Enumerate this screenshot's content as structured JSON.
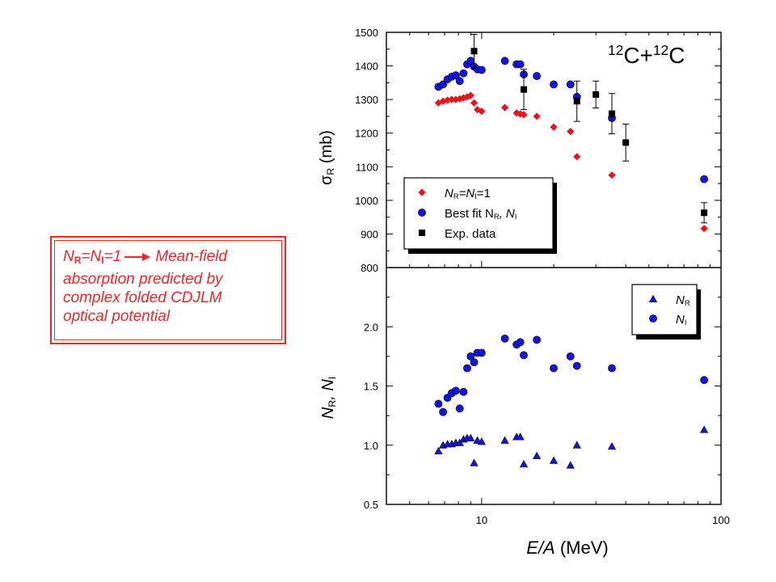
{
  "note": {
    "line1_label": "N",
    "line1_sub_r": "R",
    "line1_eq": "=N",
    "line1_sub_i": "I",
    "line1_val": "=1",
    "line1_arrow_target": "Mean-field",
    "line2": "absorption predicted by",
    "line3": "complex folded CDJLM",
    "line4": "optical potential"
  },
  "chart_data": [
    {
      "type": "scatter",
      "panel": "top",
      "title": "12C+12C",
      "title_parts": {
        "sup1": "12",
        "el1": "C+",
        "sup2": "12",
        "el2": "C"
      },
      "ylabel": "σR (mb)",
      "ylabel_parts": {
        "sym": "σ",
        "sub": "R",
        "unit": " (mb)"
      },
      "xscale": "log",
      "xlim": [
        4,
        100
      ],
      "ylim": [
        800,
        1500
      ],
      "yticks": [
        800,
        900,
        1000,
        1100,
        1200,
        1300,
        1400,
        1500
      ],
      "legend_position": "top-left",
      "series": [
        {
          "name": "NR=NI=1",
          "legend_parts": {
            "a": "N",
            "as": "R",
            "b": "=N",
            "bs": "I",
            "c": "=1"
          },
          "marker": "diamond",
          "color": "#e8141a",
          "x": [
            6.6,
            6.9,
            7.2,
            7.5,
            7.8,
            8.1,
            8.4,
            8.7,
            9.0,
            9.3,
            9.6,
            10.0,
            12.5,
            14.0,
            14.5,
            15.0,
            17.0,
            20.0,
            23.5,
            25.0,
            35.0,
            85.0
          ],
          "y": [
            1290,
            1295,
            1298,
            1300,
            1300,
            1302,
            1305,
            1308,
            1312,
            1290,
            1270,
            1265,
            1276,
            1260,
            1257,
            1255,
            1250,
            1218,
            1205,
            1130,
            1075,
            916
          ]
        },
        {
          "name": "Best fit NR, NI",
          "legend_parts": {
            "a": "Best fit N",
            "as": "R",
            "b": ", N",
            "bs": "I"
          },
          "marker": "circle",
          "color": "#1414e0",
          "x": [
            6.6,
            6.9,
            7.2,
            7.5,
            7.8,
            8.1,
            8.4,
            8.7,
            9.0,
            9.3,
            9.6,
            10.0,
            12.5,
            14.0,
            14.5,
            15.0,
            17.0,
            20.0,
            23.5,
            25.0,
            35.0,
            85.0
          ],
          "y": [
            1338,
            1345,
            1360,
            1368,
            1372,
            1355,
            1378,
            1405,
            1415,
            1398,
            1390,
            1388,
            1415,
            1405,
            1405,
            1375,
            1370,
            1345,
            1345,
            1308,
            1245,
            1063
          ]
        },
        {
          "name": "Exp. data",
          "marker": "square",
          "color": "#000000",
          "x": [
            9.3,
            15.0,
            25.0,
            30.0,
            35.0,
            40.0,
            85.0
          ],
          "y": [
            1444,
            1330,
            1295,
            1315,
            1258,
            1172,
            963
          ],
          "err": [
            50,
            60,
            60,
            40,
            60,
            55,
            30
          ]
        }
      ]
    },
    {
      "type": "scatter",
      "panel": "bottom",
      "xlabel": "E/A (MeV)",
      "xlabel_parts": {
        "a": "E/A",
        "b": " (MeV)"
      },
      "ylabel": "NR, NI",
      "ylabel_parts": {
        "a": "N",
        "as": "R",
        "b": ", N",
        "bs": "I"
      },
      "xscale": "log",
      "xlim": [
        4,
        100
      ],
      "xticklabels": [
        "10",
        "100"
      ],
      "ylim": [
        0.5,
        2.5
      ],
      "yticks": [
        0.5,
        1.0,
        1.5,
        2.0
      ],
      "yticklabels": [
        "0.5",
        "1.0",
        "1.5",
        "2.0"
      ],
      "legend_position": "top-right",
      "series": [
        {
          "name": "NR",
          "legend_parts": {
            "a": "N",
            "as": "R"
          },
          "marker": "triangle",
          "color": "#1414e0",
          "x": [
            6.6,
            6.9,
            7.2,
            7.5,
            7.8,
            8.1,
            8.4,
            8.7,
            9.0,
            9.3,
            9.6,
            10.0,
            12.5,
            14.0,
            14.5,
            15.0,
            17.0,
            20.0,
            23.5,
            25.0,
            35.0,
            85.0
          ],
          "y": [
            0.95,
            1.0,
            1.01,
            1.01,
            1.02,
            1.02,
            1.05,
            1.06,
            1.06,
            0.85,
            1.04,
            1.03,
            1.04,
            1.07,
            1.07,
            0.84,
            0.91,
            0.87,
            0.83,
            1.0,
            0.99,
            1.13
          ]
        },
        {
          "name": "NI",
          "legend_parts": {
            "a": "N",
            "as": "I"
          },
          "marker": "circle",
          "color": "#1414e0",
          "x": [
            6.6,
            6.9,
            7.2,
            7.5,
            7.8,
            8.1,
            8.4,
            8.7,
            9.0,
            9.3,
            9.6,
            10.0,
            12.5,
            14.0,
            14.5,
            15.0,
            17.0,
            20.0,
            23.5,
            25.0,
            35.0,
            85.0
          ],
          "y": [
            1.35,
            1.28,
            1.4,
            1.44,
            1.46,
            1.31,
            1.45,
            1.65,
            1.75,
            1.7,
            1.78,
            1.78,
            1.9,
            1.85,
            1.87,
            1.76,
            1.89,
            1.65,
            1.75,
            1.67,
            1.65,
            1.55
          ]
        }
      ]
    }
  ]
}
